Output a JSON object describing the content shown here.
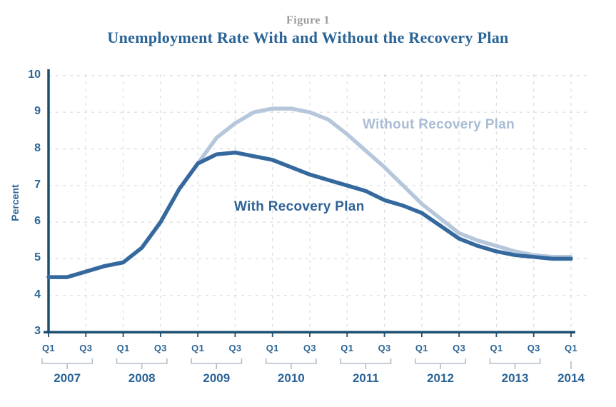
{
  "figure_label": "Figure 1",
  "title": "Unemployment Rate With and Without the Recovery Plan",
  "colors": {
    "title": "#2a6496",
    "figure_label": "#9b9b9b",
    "axis": "#1a4e70",
    "tick_label": "#2a6496",
    "grid": "#d8dbde",
    "bracket": "#b5bec8",
    "with_line": "#35699e",
    "without_line": "#b6c7dc",
    "with_label": "#2e6396",
    "without_label": "#a9bcd4"
  },
  "chart_data": {
    "type": "line",
    "title": "Unemployment Rate With and Without the Recovery Plan",
    "figure_label": "Figure 1",
    "xlabel": "",
    "ylabel": "Percent",
    "ylim": [
      3,
      10
    ],
    "yticks": [
      3,
      4,
      5,
      6,
      7,
      8,
      9,
      10
    ],
    "grid": "light dashed, horizontal at integers and vertical at Q1/Q3",
    "legend_position": "inline text labels next to lines",
    "x_quarters": [
      "2007 Q1",
      "2007 Q2",
      "2007 Q3",
      "2007 Q4",
      "2008 Q1",
      "2008 Q2",
      "2008 Q3",
      "2008 Q4",
      "2009 Q1",
      "2009 Q2",
      "2009 Q3",
      "2009 Q4",
      "2010 Q1",
      "2010 Q2",
      "2010 Q3",
      "2010 Q4",
      "2011 Q1",
      "2011 Q2",
      "2011 Q3",
      "2011 Q4",
      "2012 Q1",
      "2012 Q2",
      "2012 Q3",
      "2012 Q4",
      "2013 Q1",
      "2013 Q2",
      "2013 Q3",
      "2013 Q4",
      "2014 Q1"
    ],
    "x_tick_labels": [
      "Q1",
      "Q3",
      "Q1",
      "Q3",
      "Q1",
      "Q3",
      "Q1",
      "Q3",
      "Q1",
      "Q3",
      "Q1",
      "Q3",
      "Q1",
      "Q3",
      "Q1"
    ],
    "years": [
      "2007",
      "2008",
      "2009",
      "2010",
      "2011",
      "2012",
      "2013",
      "2014"
    ],
    "series": [
      {
        "name": "Without Recovery Plan",
        "values": [
          4.5,
          4.5,
          4.65,
          4.8,
          4.9,
          5.3,
          6.0,
          6.9,
          7.6,
          8.3,
          8.7,
          9.0,
          9.1,
          9.1,
          9.0,
          8.8,
          8.4,
          7.95,
          7.5,
          7.0,
          6.5,
          6.1,
          5.7,
          5.5,
          5.35,
          5.2,
          5.1,
          5.05,
          5.05
        ]
      },
      {
        "name": "With Recovery Plan",
        "values": [
          4.5,
          4.5,
          4.65,
          4.8,
          4.9,
          5.3,
          6.0,
          6.9,
          7.6,
          7.85,
          7.9,
          7.8,
          7.7,
          7.5,
          7.3,
          7.15,
          7.0,
          6.85,
          6.6,
          6.45,
          6.25,
          5.9,
          5.55,
          5.35,
          5.2,
          5.1,
          5.05,
          5.0,
          5.0
        ]
      }
    ]
  }
}
